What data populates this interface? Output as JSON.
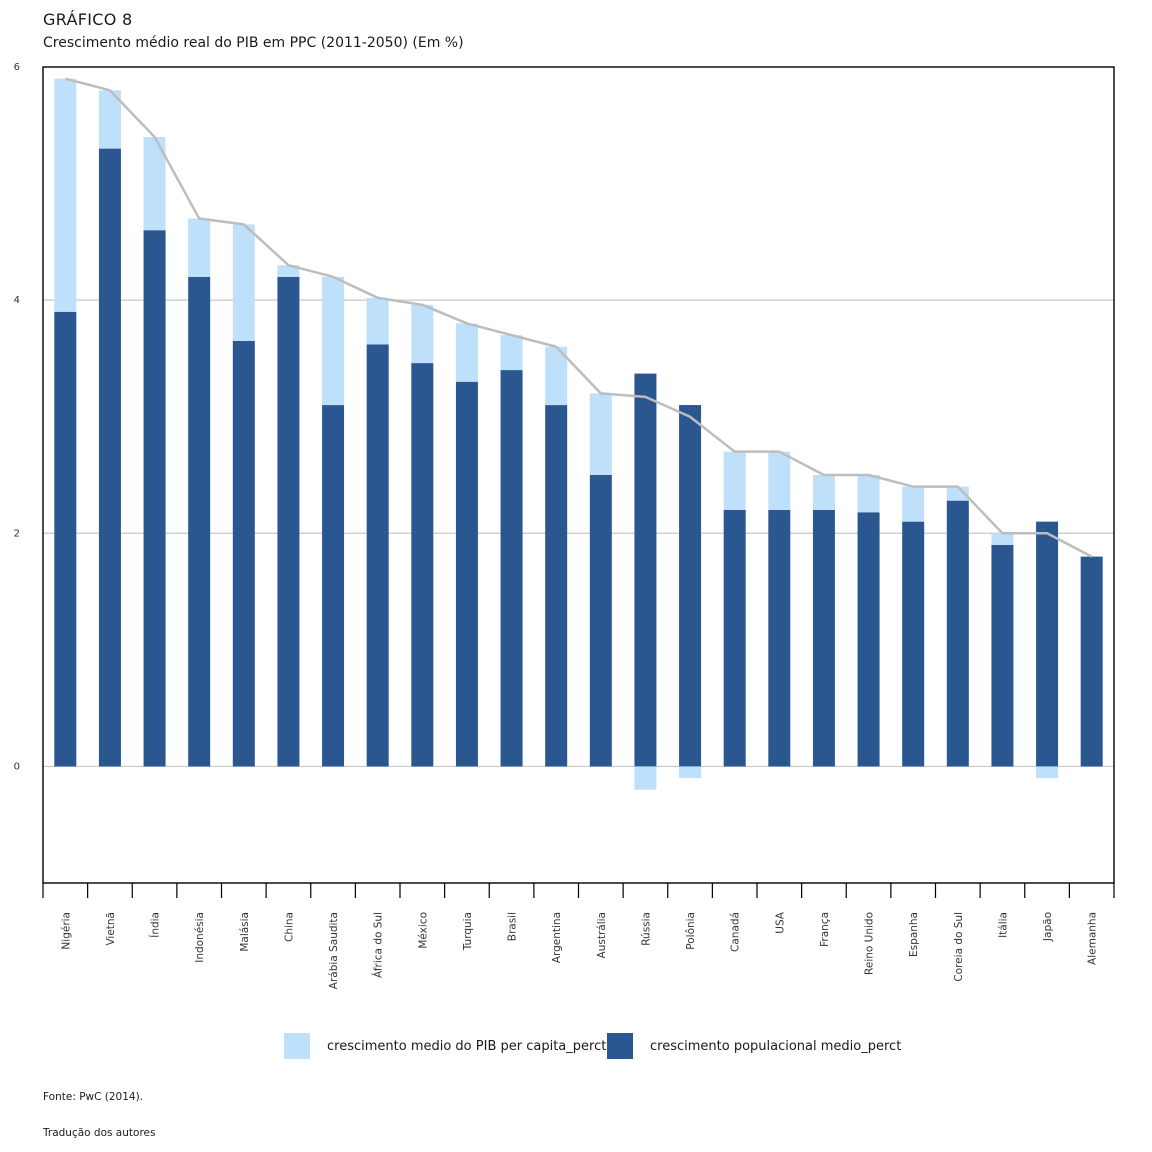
{
  "header": {
    "label": "GRÁFICO 8",
    "title": "Crescimento médio real do PIB em PPC (2011-2050) (Em %)"
  },
  "legend": [
    {
      "label": "crescimento medio do PIB per capita_perct",
      "color": "#bfe0fb"
    },
    {
      "label": "crescimento populacional medio_perct",
      "color": "#2b5790"
    }
  ],
  "footer": {
    "source": "Fonte: PwC (2014).",
    "translation": "Tradução dos autores"
  },
  "chart_data": {
    "type": "bar",
    "stacked": true,
    "categories": [
      "Nigéria",
      "Vietnã",
      "Índia",
      "Indonésia",
      "Malásia",
      "China",
      "Arábia Saudita",
      "África do Sul",
      "México",
      "Turquia",
      "Brasil",
      "Argentina",
      "Austrália",
      "Rússia",
      "Polônia",
      "Canadá",
      "USA",
      "França",
      "Reino Unido",
      "Espanha",
      "Coreia do Sul",
      "Itália",
      "Japão",
      "Alemanha"
    ],
    "series": [
      {
        "name": "crescimento populacional medio_perct",
        "color": "#2b5790",
        "values": [
          3.9,
          5.3,
          4.6,
          4.2,
          3.65,
          4.2,
          3.1,
          3.62,
          3.46,
          3.3,
          3.4,
          3.1,
          2.5,
          3.37,
          3.1,
          2.2,
          2.2,
          2.2,
          2.18,
          2.1,
          2.28,
          1.9,
          2.1,
          1.8
        ]
      },
      {
        "name": "crescimento medio do PIB per capita_perct",
        "color": "#bfe0fb",
        "values": [
          2.0,
          0.5,
          0.8,
          0.5,
          1.0,
          0.1,
          1.1,
          0.4,
          0.5,
          0.5,
          0.3,
          0.5,
          0.7,
          -0.2,
          -0.1,
          0.5,
          0.5,
          0.3,
          0.32,
          0.3,
          0.12,
          0.1,
          -0.1,
          0.0
        ]
      }
    ],
    "line": {
      "color": "#bdbdbd",
      "values": [
        5.9,
        5.8,
        5.4,
        4.7,
        4.65,
        4.3,
        4.2,
        4.02,
        3.96,
        3.8,
        3.7,
        3.6,
        3.2,
        3.17,
        3.0,
        2.7,
        2.7,
        2.5,
        2.5,
        2.4,
        2.4,
        2.0,
        2.0,
        1.8
      ]
    },
    "yticks": [
      0,
      2,
      4,
      6
    ],
    "ylim": [
      -1,
      6
    ],
    "grid": true,
    "legend_position": "bottom"
  }
}
